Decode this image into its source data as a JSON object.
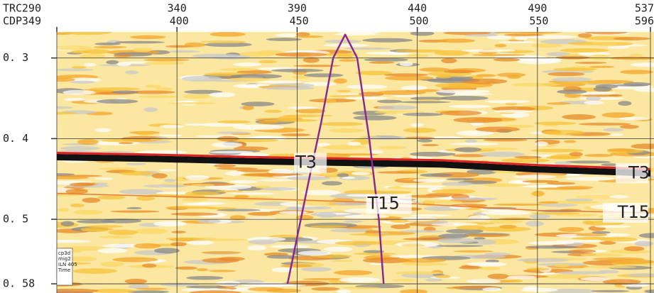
{
  "chart_data": {
    "type": "seismic",
    "x_label": "TRC",
    "x2_label": "CDP",
    "xlim": [
      290,
      538.5
    ],
    "xticks": [
      290,
      340,
      390,
      440,
      490,
      537
    ],
    "x2lim": [
      349,
      598
    ],
    "x2ticks": [
      349,
      400,
      450,
      500,
      550,
      596
    ],
    "ylim": [
      0.2677,
      0.5914
    ],
    "yticks": [
      {
        "value": 0.3,
        "label": "0. 3"
      },
      {
        "value": 0.4,
        "label": "0. 4"
      },
      {
        "value": 0.5,
        "label": "0. 5"
      },
      {
        "value": 0.58,
        "label": "0. 58"
      }
    ],
    "grid": true,
    "series": [
      {
        "name": "T3",
        "color": "#e02020",
        "x": [
          290,
          330,
          370,
          410,
          450,
          490,
          537
        ],
        "values": [
          0.423,
          0.425,
          0.428,
          0.43,
          0.432,
          0.438,
          0.443
        ]
      },
      {
        "name": "T15",
        "color": "#e8803a",
        "x": [
          290,
          340,
          390,
          440,
          490,
          537
        ],
        "values": [
          0.468,
          0.472,
          0.476,
          0.481,
          0.489,
          0.492
        ]
      }
    ],
    "curve": {
      "color": "#8b2a8f",
      "x": [
        386,
        395,
        400,
        405,
        410,
        415,
        420,
        424,
        426
      ],
      "values": [
        0.58,
        0.45,
        0.38,
        0.3,
        0.271,
        0.3,
        0.4,
        0.5,
        0.58
      ]
    },
    "info": [
      "cp3d",
      "mig2",
      "ILN 405",
      "Time"
    ]
  }
}
